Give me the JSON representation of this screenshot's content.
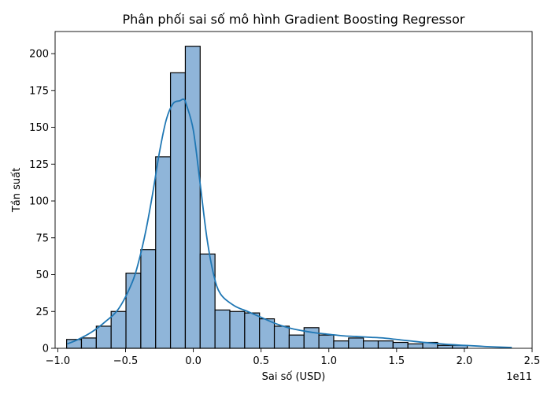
{
  "chart_data": {
    "type": "histogram",
    "title": "Phân phối sai số mô hình Gradient Boosting Regressor",
    "xlabel": "Sai số (USD)",
    "ylabel": "Tần suất",
    "x_offset_label": "1e11",
    "x_scale_exponent": 11,
    "xlim": [
      -1.02,
      2.5
    ],
    "ylim": [
      0,
      215
    ],
    "xticks": [
      -1.0,
      -0.5,
      0.0,
      0.5,
      1.0,
      1.5,
      2.0,
      2.5
    ],
    "xtick_labels": [
      "−1.0",
      "−0.5",
      "0.0",
      "0.5",
      "1.0",
      "1.5",
      "2.0",
      "2.5"
    ],
    "yticks": [
      0,
      25,
      50,
      75,
      100,
      125,
      150,
      175,
      200
    ],
    "ytick_labels": [
      "0",
      "25",
      "50",
      "75",
      "100",
      "125",
      "150",
      "175",
      "200"
    ],
    "bins": {
      "start": -0.935,
      "width": 0.1095,
      "counts": [
        6,
        7,
        15,
        25,
        51,
        67,
        130,
        187,
        205,
        64,
        26,
        25,
        24,
        20,
        15,
        9,
        14,
        9,
        5,
        7,
        5,
        5,
        4,
        3,
        4,
        2,
        2
      ]
    },
    "kde": {
      "x": [
        -0.93,
        -0.85,
        -0.75,
        -0.65,
        -0.55,
        -0.45,
        -0.4,
        -0.35,
        -0.3,
        -0.25,
        -0.2,
        -0.15,
        -0.1,
        -0.07,
        -0.05,
        0.0,
        0.05,
        0.1,
        0.15,
        0.2,
        0.3,
        0.4,
        0.5,
        0.6,
        0.7,
        0.8,
        0.9,
        1.0,
        1.1,
        1.2,
        1.3,
        1.4,
        1.5,
        1.6,
        1.7,
        1.8,
        1.9,
        2.0,
        2.1,
        2.2,
        2.35
      ],
      "y": [
        3,
        6,
        11,
        18,
        27,
        45,
        60,
        80,
        105,
        133,
        155,
        166,
        168,
        169,
        165,
        148,
        112,
        75,
        50,
        37,
        29,
        25,
        21,
        17,
        14,
        12,
        10.5,
        9.5,
        8.5,
        8,
        7.5,
        7,
        6,
        5,
        4,
        3.2,
        2.5,
        2,
        1.5,
        1,
        0.5
      ]
    },
    "colors": {
      "bar_fill": "#8fb5d9",
      "bar_edge": "#000000",
      "kde_line": "#1f77b4",
      "axes": "#000000"
    },
    "grid": false,
    "legend": "none"
  }
}
